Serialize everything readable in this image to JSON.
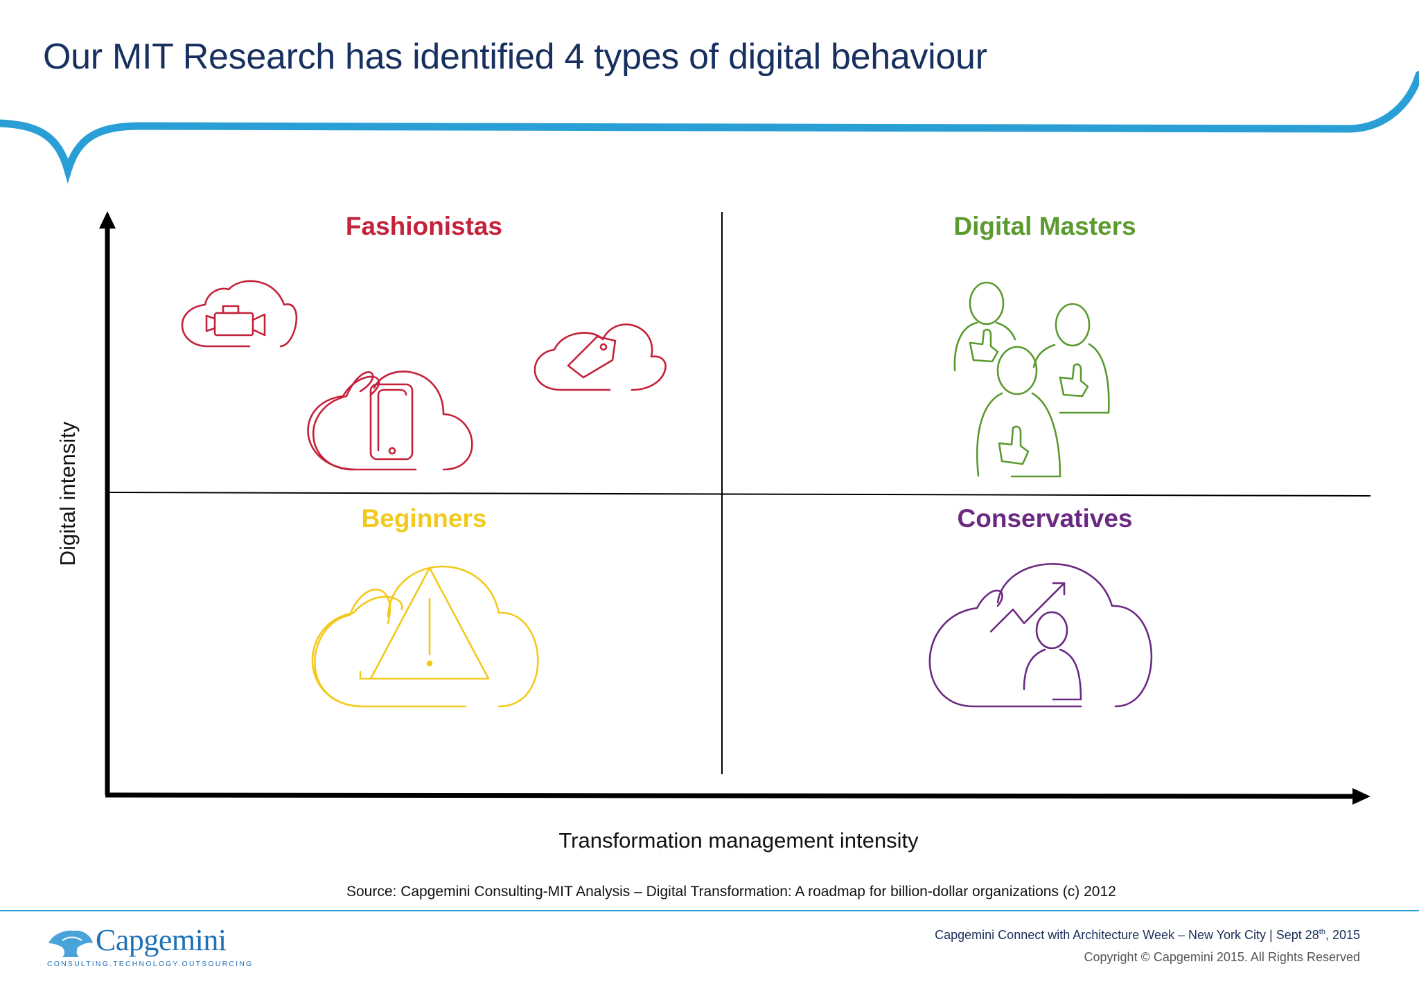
{
  "slide": {
    "title": "Our MIT Research has identified 4 types of digital behaviour"
  },
  "matrix": {
    "y_axis_label": "Digital intensity",
    "x_axis_label": "Transformation management intensity",
    "quadrants": {
      "top_left": {
        "label": "Fashionistas",
        "color": "#c4213a"
      },
      "top_right": {
        "label": "Digital Masters",
        "color": "#5a9a2e"
      },
      "bottom_left": {
        "label": "Beginners",
        "color": "#f2c91c"
      },
      "bottom_right": {
        "label": "Conservatives",
        "color": "#6b2a82"
      }
    }
  },
  "source_text": "Source: Capgemini Consulting-MIT Analysis – Digital Transformation: A roadmap for billion-dollar organizations (c) 2012",
  "footer": {
    "logo_text": "Capgemini",
    "logo_tagline": "CONSULTING.TECHNOLOGY.OUTSOURCING",
    "event_text_pre": "Capgemini Connect with Architecture Week – New York City | Sept 28",
    "event_superscript": "th",
    "event_text_post": ", 2015",
    "copyright": "Copyright © Capgemini 2015. All Rights Reserved"
  },
  "colors": {
    "title": "#17305f",
    "swoosh": "#2a9fd6",
    "brand_blue": "#1f70b5"
  }
}
